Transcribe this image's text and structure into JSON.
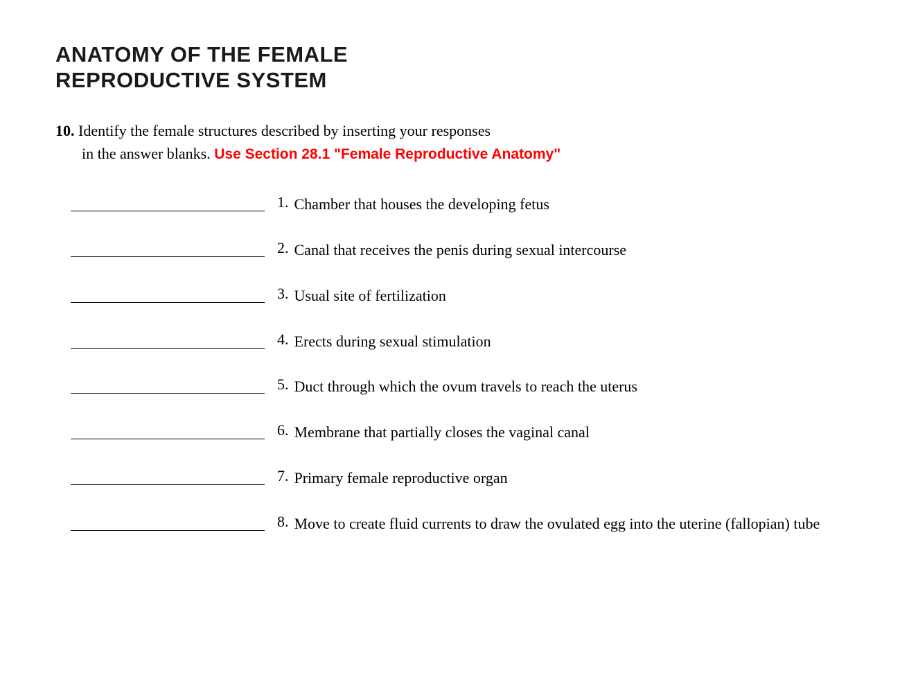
{
  "title_line1": "ANATOMY OF THE FEMALE",
  "title_line2": "REPRODUCTIVE SYSTEM",
  "question_number": "10.",
  "instruction_line1": "Identify the female structures described by inserting your responses",
  "instruction_line2": "in the answer blanks.",
  "red_note": "Use Section 28.1 \"Female Reproductive Anatomy\"",
  "items": [
    {
      "num": "1.",
      "text": "Chamber that houses the developing fetus"
    },
    {
      "num": "2.",
      "text": "Canal that receives the penis during sexual intercourse"
    },
    {
      "num": "3.",
      "text": "Usual site of fertilization"
    },
    {
      "num": "4.",
      "text": "Erects during sexual stimulation"
    },
    {
      "num": "5.",
      "text": "Duct through which the ovum travels to reach the uterus"
    },
    {
      "num": "6.",
      "text": "Membrane that partially closes the vaginal canal"
    },
    {
      "num": "7.",
      "text": "Primary female reproductive organ"
    },
    {
      "num": "8.",
      "text": "Move to create fluid currents to draw the ovulated egg into the uterine (fallopian) tube"
    }
  ],
  "colors": {
    "background": "#ffffff",
    "text": "#000000",
    "red_note": "#ff0000"
  },
  "typography": {
    "title_fontsize": 31,
    "title_weight": 900,
    "body_fontsize": 22,
    "red_note_fontsize": 21
  }
}
